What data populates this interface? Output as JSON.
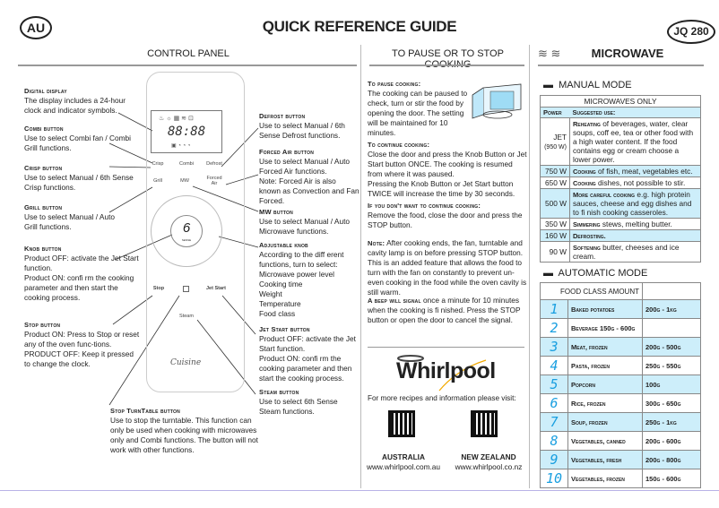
{
  "header": {
    "region": "AU",
    "title": "QUICK REFERENCE GUIDE",
    "model": "JQ 280"
  },
  "sections": {
    "control_panel": "CONTROL PANEL",
    "pause": "TO PAUSE OR TO STOP COOKING",
    "microwave": "MICROWAVE"
  },
  "control_panel": {
    "left": [
      {
        "title": "Digital display",
        "text": "The display includes a 24-hour clock and indicator symbols."
      },
      {
        "title": "Combi button",
        "text": "Use to select Combi fan / Combi Grill functions."
      },
      {
        "title": "Crisp button",
        "text": "Use to select Manual / 6th Sense Crisp functions."
      },
      {
        "title": "Grill button",
        "text": "Use to select Manual / Auto Grill functions."
      },
      {
        "title": "Knob button",
        "text": "Product OFF: activate the Jet Start function.\nProduct ON: confi rm the cooking parameter and then start the cooking process."
      },
      {
        "title": "Stop button",
        "text": "Product ON: Press to Stop or reset any of the oven func-tions.\nPRODUCT OFF: Keep it pressed to change the clock."
      }
    ],
    "bottom": {
      "title": "Stop TurnTable button",
      "text": "Use to stop the turntable. This function can only be used when cooking with microwaves only and Combi functions. The button will not work with other functions."
    },
    "right": [
      {
        "title": "Defrost button",
        "text": "Use to select Manual / 6th Sense Defrost functions."
      },
      {
        "title": "Forced Air button",
        "text": "Use to select Manual / Auto Forced Air functions.\nNote: Forced Air is also known as Convection and Fan Forced."
      },
      {
        "title": "MW button",
        "text": "Use to select Manual / Auto Microwave functions."
      },
      {
        "title": "Adjustable knob",
        "text": "According to the diff erent functions, turn to select:\nMicrowave power level\nCooking time\nWeight\nTemperature\nFood class"
      },
      {
        "title": "Jet Start button",
        "text": "Product OFF: activate the Jet Start function.\nProduct ON: confi rm the cooking parameter and then start the cooking process."
      },
      {
        "title": "Steam button",
        "text": "Use to select 6th Sense Steam functions."
      }
    ],
    "panel_labels": {
      "display_digits": "88:88",
      "crisp": "Crisp",
      "combi": "Combi",
      "defrost": "Defrost",
      "grill": "Grill",
      "mw": "MW",
      "forced_air": "Forced Air",
      "knob": "6",
      "knob_sub": "SENSE",
      "stop": "Stop",
      "jet_start": "Jet Start",
      "steam": "Steam",
      "brand": "Cuisine"
    }
  },
  "pause": {
    "blocks": [
      {
        "title": "To pause cooking:",
        "text": "The cooking can be paused to check, turn or stir the food by opening the door. The setting will be maintained for 10 minutes."
      },
      {
        "title": "To continue cooking:",
        "text": "Close the door and press the Knob Button or Jet Start button ONCE. The cooking is resumed from where it was paused.\nPressing the Knob Button or Jet Start button TWICE will increase the time by 30 seconds."
      },
      {
        "title": "If you don't want to continue cooking:",
        "text": "Remove the food, close the door and press the STOP button."
      },
      {
        "title": "Note:",
        "text": "After cooking ends, the fan, turntable and cavity lamp is on before pressing STOP button. This is an added feature that allows the food to turn with the fan on constantly to prevent un-even cooking in the food while the oven cavity is still warm."
      },
      {
        "title": "A beep will signal",
        "text": "once a minute for 10 minutes when the cooking is fi nished. Press the STOP button or open the door to cancel the signal."
      }
    ],
    "logo": "Whirlpool",
    "visit": "For more recipes and information please visit:",
    "links": [
      {
        "country": "AUSTRALIA",
        "url": "www.whirlpool.com.au"
      },
      {
        "country": "NEW ZEALAND",
        "url": "www.whirlpool.co.nz"
      }
    ]
  },
  "manual": {
    "title": "MANUAL MODE",
    "table_title": "MICROWAVES ONLY",
    "col_power": "Power",
    "col_use": "Suggested use:",
    "rows": [
      {
        "power": "JET",
        "sub": "(950 W)",
        "bold": "Reheating",
        "text": " of beverages,  water, clear soups, coff ee, tea or other food with a high water content. If the food contains egg or cream choose a lower power."
      },
      {
        "power": "750 W",
        "bold": "Cooking",
        "text": " of fish, meat, vegetables etc."
      },
      {
        "power": "650 W",
        "bold": "Cooking",
        "text": " dishes, not possible to stir."
      },
      {
        "power": "500 W",
        "bold": "More careful cooking",
        "text": "  e.g. high protein sauces, cheese and egg dishes and to fi nish cooking casseroles."
      },
      {
        "power": "350 W",
        "bold": "Simmering",
        "text": " stews, melting butter."
      },
      {
        "power": "160 W",
        "bold": "Defrosting.",
        "text": ""
      },
      {
        "power": "90 W",
        "bold": "Softening",
        "text": " butter, cheeses and ice cream."
      }
    ]
  },
  "automatic": {
    "title": "AUTOMATIC MODE",
    "header": "FOOD CLASS AMOUNT",
    "rows": [
      {
        "n": "1",
        "food": "Baked potatoes",
        "amount": "200g - 1kg"
      },
      {
        "n": "2",
        "food": "Beverage  150g - 600g",
        "amount": ""
      },
      {
        "n": "3",
        "food": "Meat, frozen",
        "amount": "200g - 500g"
      },
      {
        "n": "4",
        "food": "Pasta, frozen",
        "amount": "250g - 550g"
      },
      {
        "n": "5",
        "food": "Popcorn",
        "amount": "100g"
      },
      {
        "n": "6",
        "food": "Rice, frozen",
        "amount": "300g - 650g"
      },
      {
        "n": "7",
        "food": "Soup, frozen",
        "amount": "250g - 1kg"
      },
      {
        "n": "8",
        "food": "Vegetables, canned",
        "amount": "200g - 600g"
      },
      {
        "n": "9",
        "food": "Vegetables, fresh",
        "amount": "200g - 800g"
      },
      {
        "n": "10",
        "food": "Vegetables, frozen",
        "amount": "150g - 600g"
      }
    ]
  },
  "colors": {
    "table_blue": "#cdeefa",
    "digit_blue": "#1a9fe0",
    "whirlpool_orange": "#f2a900"
  }
}
